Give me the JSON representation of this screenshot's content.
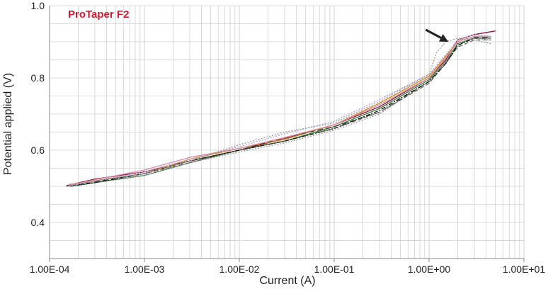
{
  "chart_data": {
    "type": "line",
    "title": "ProTaper F2",
    "xlabel": "Current (A)",
    "ylabel": "Potential applied (V)",
    "x_scale": "log",
    "xlim": [
      0.0001,
      10
    ],
    "ylim": [
      0.3,
      1.0
    ],
    "x_ticks": [
      0.0001,
      0.001,
      0.01,
      0.1,
      1,
      10
    ],
    "x_tick_labels": [
      "1.00E-04",
      "1.00E-03",
      "1.00E-02",
      "1.00E-01",
      "1.00E+00",
      "1.00E+01"
    ],
    "y_ticks": [
      0.4,
      0.6,
      0.8,
      1.0
    ],
    "y_tick_labels": [
      "0.4",
      "0.6",
      "0.8",
      "1.0"
    ],
    "grid": true,
    "legend": "none",
    "colors": {
      "title": "#d6182f",
      "grid": "#d0d0d0",
      "axis": "#888888",
      "arrow": "#222222",
      "series": [
        "#8a1538",
        "#c9851a",
        "#2e7d32",
        "#444444",
        "#9e9e9e",
        "#6b6b6b",
        "#b39ddb",
        "#e08aa8",
        "#1a1a1a",
        "#9e9e9e"
      ]
    },
    "annotation": {
      "type": "arrow",
      "x": 1.6,
      "y": 0.9
    },
    "series": [
      {
        "x": [
          0.00015,
          0.0003,
          0.001,
          0.003,
          0.01,
          0.03,
          0.1,
          0.3,
          1,
          1.5,
          2,
          3,
          5
        ],
        "y": [
          0.502,
          0.52,
          0.54,
          0.57,
          0.6,
          0.632,
          0.67,
          0.72,
          0.8,
          0.85,
          0.905,
          0.92,
          0.93
        ]
      },
      {
        "x": [
          0.00016,
          0.0003,
          0.001,
          0.003,
          0.01,
          0.03,
          0.1,
          0.3,
          1,
          1.5,
          2,
          3,
          4.5
        ],
        "y": [
          0.505,
          0.515,
          0.535,
          0.575,
          0.605,
          0.63,
          0.67,
          0.73,
          0.805,
          0.86,
          0.9,
          0.915,
          0.915
        ]
      },
      {
        "x": [
          0.00017,
          0.0003,
          0.001,
          0.003,
          0.01,
          0.03,
          0.1,
          0.3,
          1,
          1.5,
          2,
          3,
          4.5
        ],
        "y": [
          0.5,
          0.51,
          0.53,
          0.565,
          0.6,
          0.625,
          0.665,
          0.715,
          0.795,
          0.845,
          0.895,
          0.91,
          0.91
        ]
      },
      {
        "x": [
          0.00016,
          0.0003,
          0.001,
          0.003,
          0.01,
          0.03,
          0.1,
          0.3,
          1,
          1.5,
          2,
          3,
          4.5
        ],
        "y": [
          0.5,
          0.512,
          0.535,
          0.57,
          0.6,
          0.635,
          0.665,
          0.705,
          0.79,
          0.84,
          0.89,
          0.912,
          0.912
        ]
      },
      {
        "x": [
          0.00016,
          0.0003,
          0.001,
          0.003,
          0.01,
          0.03,
          0.1,
          0.3,
          1,
          1.5,
          2,
          3,
          4.5
        ],
        "y": [
          0.505,
          0.51,
          0.53,
          0.565,
          0.595,
          0.62,
          0.655,
          0.7,
          0.79,
          0.845,
          0.905,
          0.91,
          0.905
        ]
      },
      {
        "x": [
          0.00015,
          0.0003,
          0.001,
          0.003,
          0.01,
          0.03,
          0.1,
          0.3,
          1,
          1.5,
          2,
          3,
          4.5
        ],
        "y": [
          0.5,
          0.515,
          0.535,
          0.565,
          0.6,
          0.625,
          0.66,
          0.705,
          0.785,
          0.84,
          0.885,
          0.905,
          0.905
        ]
      },
      {
        "x": [
          0.00016,
          0.0003,
          0.001,
          0.003,
          0.01,
          0.03,
          0.1,
          0.3,
          1,
          1.5,
          2,
          3,
          4.5
        ],
        "y": [
          0.505,
          0.515,
          0.54,
          0.575,
          0.61,
          0.645,
          0.68,
          0.74,
          0.81,
          0.865,
          0.905,
          0.92,
          0.915
        ]
      },
      {
        "x": [
          0.00016,
          0.0003,
          0.001,
          0.003,
          0.01,
          0.03,
          0.1,
          0.3,
          1,
          1.5,
          2,
          3,
          4.5
        ],
        "y": [
          0.503,
          0.518,
          0.545,
          0.58,
          0.605,
          0.635,
          0.67,
          0.725,
          0.8,
          0.855,
          0.9,
          0.915,
          0.915
        ]
      },
      {
        "x": [
          0.00016,
          0.0003,
          0.001,
          0.003,
          0.01,
          0.03,
          0.1,
          0.3,
          1,
          1.5,
          2,
          3,
          4.5
        ],
        "y": [
          0.5,
          0.51,
          0.535,
          0.57,
          0.6,
          0.625,
          0.66,
          0.71,
          0.79,
          0.84,
          0.89,
          0.91,
          0.91
        ]
      },
      {
        "x": [
          0.00016,
          0.0003,
          0.001,
          0.003,
          0.01,
          0.03,
          0.1,
          0.3,
          1,
          1.2,
          1.5,
          2,
          3,
          4.5
        ],
        "y": [
          0.5,
          0.515,
          0.535,
          0.57,
          0.615,
          0.65,
          0.675,
          0.735,
          0.81,
          0.87,
          0.9,
          0.91,
          0.905,
          0.895
        ]
      }
    ]
  }
}
